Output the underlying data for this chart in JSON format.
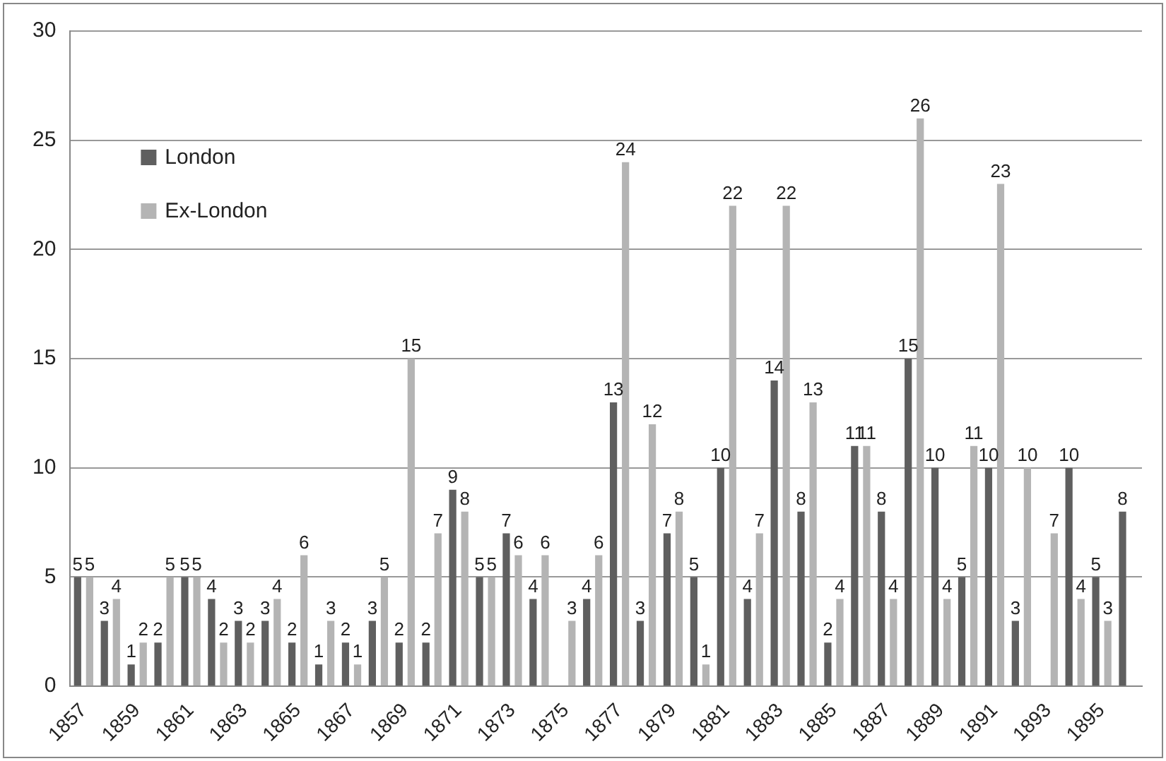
{
  "chart_data": {
    "type": "bar",
    "categories": [
      "1857",
      null,
      "1859",
      null,
      "1861",
      null,
      "1863",
      null,
      "1865",
      null,
      "1867",
      null,
      "1869",
      null,
      "1871",
      null,
      "1873",
      null,
      "1875",
      null,
      "1877",
      null,
      "1879",
      null,
      "1881",
      null,
      "1883",
      null,
      "1885",
      null,
      "1887",
      null,
      "1889",
      null,
      "1891",
      null,
      "1893",
      null,
      "1895",
      null
    ],
    "series": [
      {
        "name": "London",
        "color": "#5f5f5f",
        "values": [
          5,
          3,
          1,
          2,
          5,
          4,
          3,
          3,
          2,
          1,
          2,
          3,
          2,
          2,
          9,
          5,
          7,
          4,
          null,
          4,
          13,
          3,
          7,
          5,
          10,
          4,
          14,
          8,
          2,
          11,
          8,
          15,
          10,
          5,
          10,
          3,
          null,
          10,
          5,
          8
        ]
      },
      {
        "name": "Ex-London",
        "color": "#b4b4b4",
        "values": [
          5,
          4,
          2,
          5,
          5,
          2,
          2,
          4,
          6,
          3,
          1,
          5,
          15,
          7,
          8,
          5,
          6,
          6,
          3,
          6,
          24,
          12,
          8,
          1,
          22,
          7,
          22,
          13,
          4,
          11,
          4,
          26,
          4,
          11,
          23,
          10,
          7,
          4,
          3,
          null
        ]
      }
    ],
    "ylim": [
      0,
      30
    ],
    "yticks": [
      0,
      5,
      10,
      15,
      20,
      25,
      30
    ],
    "grid": "y",
    "legend": "top left",
    "data_labels": true
  }
}
